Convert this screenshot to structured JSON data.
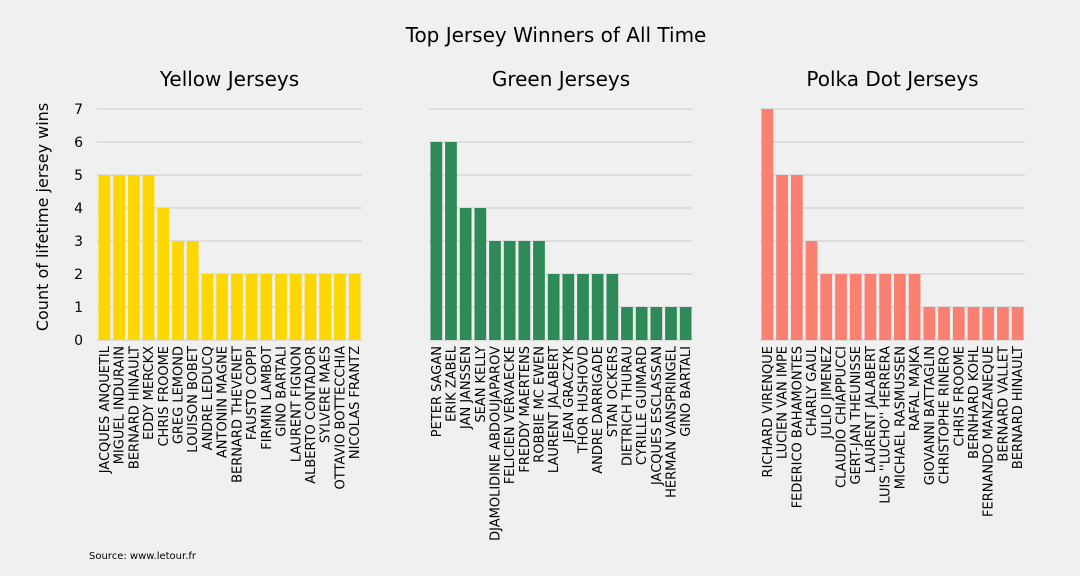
{
  "title": "Top Jersey Winners of All Time",
  "source": "Source: www.letour.fr",
  "ylabel": "Count of lifetime jersey wins",
  "chart_data": [
    {
      "type": "bar",
      "title": "Yellow Jerseys",
      "color": "#FFD700",
      "ylim": [
        0,
        7
      ],
      "yticks": [
        0,
        1,
        2,
        3,
        4,
        5,
        6,
        7
      ],
      "grid": true,
      "categories": [
        "JACQUES ANQUETIL",
        "MIGUEL INDURAIN",
        "BERNARD HINAULT",
        "EDDY MERCKX",
        "CHRIS FROOME",
        "GREG LEMOND",
        "LOUISON BOBET",
        "ANDRE LEDUCQ",
        "ANTONIN MAGNE",
        "BERNARD THEVENET",
        "FAUSTO COPPI",
        "FIRMIN LAMBOT",
        "GINO BARTALI",
        "LAURENT FIGNON",
        "ALBERTO CONTADOR",
        "SYLVERE MAES",
        "OTTAVIO BOTTECCHIA",
        "NICOLAS FRANTZ"
      ],
      "values": [
        5,
        5,
        5,
        5,
        4,
        3,
        3,
        2,
        2,
        2,
        2,
        2,
        2,
        2,
        2,
        2,
        2,
        2
      ]
    },
    {
      "type": "bar",
      "title": "Green Jerseys",
      "color": "#2E8B57",
      "ylim": [
        0,
        7
      ],
      "yticks": [
        0,
        1,
        2,
        3,
        4,
        5,
        6,
        7
      ],
      "grid": true,
      "categories": [
        "PETER SAGAN",
        "ERIK ZABEL",
        "JAN JANSSEN",
        "SEAN KELLY",
        "DJAMOLIDINE ABDOUJAPAROV",
        "FELICIEN VERVAECKE",
        "FREDDY MAERTENS",
        "ROBBIE MC EWEN",
        "LAURENT JALABERT",
        "JEAN GRACZYK",
        "THOR HUSHOVD",
        "ANDRE DARRIGADE",
        "STAN OCKERS",
        "DIETRICH THURAU",
        "CYRILLE GUIMARD",
        "JACQUES ESCLASSAN",
        "HERMAN VANSPRINGEL",
        "GINO BARTALI"
      ],
      "values": [
        6,
        6,
        4,
        4,
        3,
        3,
        3,
        3,
        2,
        2,
        2,
        2,
        2,
        1,
        1,
        1,
        1,
        1
      ]
    },
    {
      "type": "bar",
      "title": "Polka Dot Jerseys",
      "color": "#FA8072",
      "ylim": [
        0,
        7
      ],
      "yticks": [
        0,
        1,
        2,
        3,
        4,
        5,
        6,
        7
      ],
      "grid": true,
      "categories": [
        "RICHARD VIRENQUE",
        "LUCIEN VAN IMPE",
        "FEDERICO BAHAMONTES",
        "CHARLY GAUL",
        "JULIO JIMENEZ",
        "CLAUDIO CHIAPPUCCI",
        "GERT-JAN THEUNISSE",
        "LAURENT JALABERT",
        "LUIS ''LUCHO'' HERRERA",
        "MICHAEL RASMUSSEN",
        "RAFAL MAJKA",
        "GIOVANNI BATTAGLIN",
        "CHRISTOPHE RINERO",
        "CHRIS FROOME",
        "BERNHARD KOHL",
        "FERNANDO MANZANEQUE",
        "BERNARD VALLET",
        "BERNARD HINAULT"
      ],
      "values": [
        7,
        5,
        5,
        3,
        2,
        2,
        2,
        2,
        2,
        2,
        2,
        1,
        1,
        1,
        1,
        1,
        1,
        1
      ]
    }
  ]
}
